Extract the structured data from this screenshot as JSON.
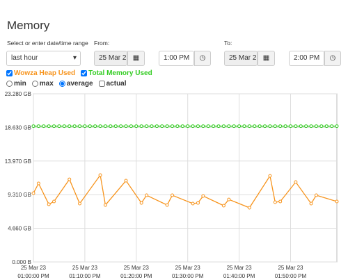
{
  "header": {
    "title": "Memory"
  },
  "controls": {
    "range_label": "Select or enter date/time range",
    "range": "last hour",
    "from_label": "From:",
    "from_date": "25 Mar 2",
    "from_time": "1:00 PM",
    "to_label": "To:",
    "to_date": "25 Mar 2",
    "to_time": "2:00 PM"
  },
  "options": {
    "aggregations": [
      {
        "label": "min",
        "selected": false
      },
      {
        "label": "max",
        "selected": false
      },
      {
        "label": "average",
        "selected": true
      },
      {
        "label": "actual",
        "selected": false
      }
    ]
  },
  "chart_data": {
    "type": "line",
    "grid": true,
    "xlim": [
      0,
      59
    ],
    "xticks": [
      {
        "value": 0,
        "date": "25 Mar 23",
        "label": "01:00:00 PM"
      },
      {
        "value": 10,
        "date": "25 Mar 23",
        "label": "01:10:00 PM"
      },
      {
        "value": 20,
        "date": "25 Mar 23",
        "label": "01:20:00 PM"
      },
      {
        "value": 30,
        "date": "25 Mar 23",
        "label": "01:30:00 PM"
      },
      {
        "value": 40,
        "date": "25 Mar 23",
        "label": "01:40:00 PM"
      },
      {
        "value": 50,
        "date": "25 Mar 23",
        "label": "01:50:00 PM"
      }
    ],
    "ylim": [
      0,
      23.28
    ],
    "yticks": [
      {
        "value": 0,
        "label": "0.000 B"
      },
      {
        "value": 4.66,
        "label": "4.660 GB"
      },
      {
        "value": 9.31,
        "label": "9.310 GB"
      },
      {
        "value": 13.97,
        "label": "13.970 GB"
      },
      {
        "value": 18.63,
        "label": "18.630 GB"
      },
      {
        "value": 23.28,
        "label": "23.280 GB"
      }
    ],
    "series": [
      {
        "name": "Wowza Heap Used",
        "color": "#f7941d",
        "checked": true,
        "x": [
          0,
          1,
          3,
          4,
          7,
          9,
          13,
          14,
          18,
          21,
          22,
          26,
          27,
          31,
          32,
          33,
          37,
          38,
          42,
          46,
          47,
          48,
          51,
          54,
          55,
          59
        ],
        "values": [
          9.52,
          10.87,
          7.98,
          8.37,
          11.44,
          8.08,
          12.02,
          7.88,
          11.25,
          8.17,
          9.23,
          7.88,
          9.23,
          8.08,
          8.17,
          9.13,
          7.79,
          8.65,
          7.5,
          11.92,
          8.27,
          8.37,
          11.06,
          8.08,
          9.23,
          8.37
        ]
      },
      {
        "name": "Total Memory Used",
        "color": "#33cc22",
        "checked": true,
        "x": [
          0,
          1,
          2,
          3,
          4,
          5,
          6,
          7,
          8,
          9,
          10,
          11,
          12,
          13,
          14,
          15,
          16,
          17,
          18,
          19,
          20,
          21,
          22,
          23,
          24,
          25,
          26,
          27,
          28,
          29,
          30,
          31,
          32,
          33,
          34,
          35,
          36,
          37,
          38,
          39,
          40,
          41,
          42,
          43,
          44,
          45,
          46,
          47,
          48,
          49,
          50,
          51,
          52,
          53,
          54,
          55,
          56,
          57,
          58,
          59
        ],
        "values": [
          18.8,
          18.8,
          18.8,
          18.8,
          18.8,
          18.8,
          18.8,
          18.8,
          18.8,
          18.8,
          18.8,
          18.8,
          18.8,
          18.8,
          18.8,
          18.8,
          18.8,
          18.8,
          18.8,
          18.8,
          18.8,
          18.8,
          18.8,
          18.8,
          18.8,
          18.8,
          18.8,
          18.8,
          18.8,
          18.8,
          18.8,
          18.8,
          18.8,
          18.8,
          18.8,
          18.8,
          18.8,
          18.8,
          18.8,
          18.8,
          18.8,
          18.8,
          18.8,
          18.8,
          18.8,
          18.8,
          18.8,
          18.8,
          18.8,
          18.8,
          18.8,
          18.8,
          18.8,
          18.8,
          18.8,
          18.8,
          18.8,
          18.8,
          18.8,
          18.8
        ]
      }
    ]
  }
}
